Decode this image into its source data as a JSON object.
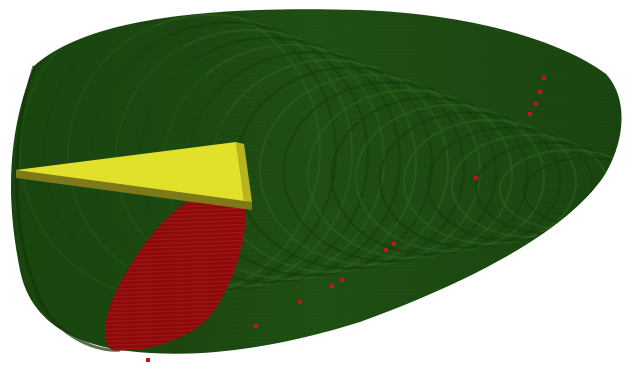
{
  "scene": {
    "background": "#ffffff",
    "body_color": "#1e4d12",
    "body_dark": "#153a0b",
    "body_light": "#2b6320",
    "slice_color": "#8b0a0a",
    "slice_stripe": "#a01414",
    "plane_top": "#e1e02a",
    "plane_edge": "#7e7a1a",
    "dot_color": "#c51616"
  }
}
